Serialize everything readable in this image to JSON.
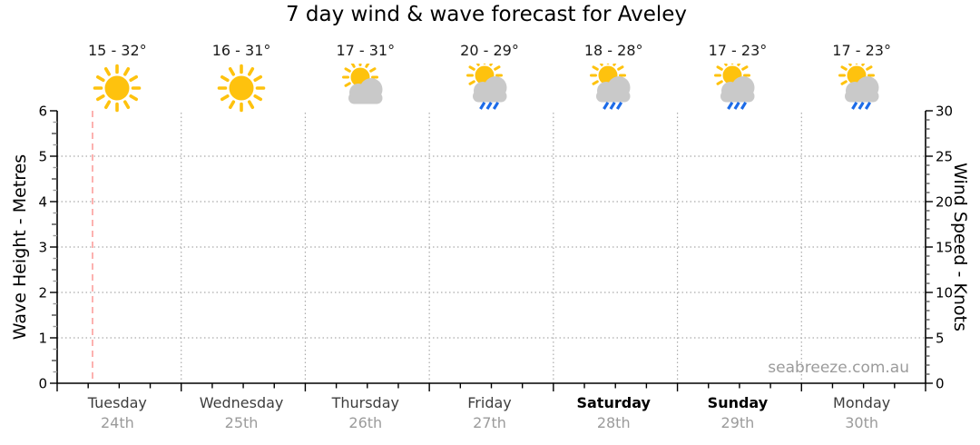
{
  "title": "7 day wind & wave forecast for Aveley",
  "watermark": "seabreeze.com.au",
  "chart_data": {
    "type": "line",
    "title": "7 day wind & wave forecast for Aveley",
    "series": [],
    "note_series_empty": "no wave/wind curves plotted yet - empty forecast grid",
    "days": [
      {
        "name": "Tuesday",
        "date": "24th",
        "temp": "15 - 32°",
        "icon": "sunny",
        "bold": false
      },
      {
        "name": "Wednesday",
        "date": "25th",
        "temp": "16 - 31°",
        "icon": "sunny",
        "bold": false
      },
      {
        "name": "Thursday",
        "date": "26th",
        "temp": "17 - 31°",
        "icon": "sun-cloud",
        "bold": false
      },
      {
        "name": "Friday",
        "date": "27th",
        "temp": "20 - 29°",
        "icon": "sun-cloud-rain",
        "bold": false
      },
      {
        "name": "Saturday",
        "date": "28th",
        "temp": "18 - 28°",
        "icon": "sun-cloud-rain",
        "bold": true
      },
      {
        "name": "Sunday",
        "date": "29th",
        "temp": "17 - 23°",
        "icon": "sun-cloud-rain",
        "bold": true
      },
      {
        "name": "Monday",
        "date": "30th",
        "temp": "17 - 23°",
        "icon": "sun-cloud-rain",
        "bold": false
      }
    ],
    "y_axis_left": {
      "label": "Wave Height - Metres",
      "range": [
        0,
        6
      ],
      "major_tick_step": 1,
      "minor_tick_step": 0.25
    },
    "y_axis_right": {
      "label": "Wind Speed - Knots",
      "range": [
        0,
        30
      ],
      "major_tick_step": 5,
      "minor_tick_step": 1
    },
    "x_axis": {
      "minor_ticks_per_day": 4,
      "gridlines_at_day_boundaries": true
    },
    "grid": {
      "horizontal_dotted_at": [
        1,
        2,
        3,
        4,
        5
      ],
      "style": "dotted"
    },
    "now_marker": {
      "style": "dashed",
      "day_index": 0,
      "day_fraction": 0.285,
      "color": "#fb9f9c"
    },
    "legend": "none"
  },
  "colors": {
    "sun": "#fec20e",
    "cloud": "#c9c9c9",
    "rain": "#1c6be8",
    "grid": "#ababab",
    "axis": "#000000",
    "day_text": "#3d3d3d",
    "date_text": "#9b9b9b",
    "watermark_text": "#9b9b9b"
  }
}
